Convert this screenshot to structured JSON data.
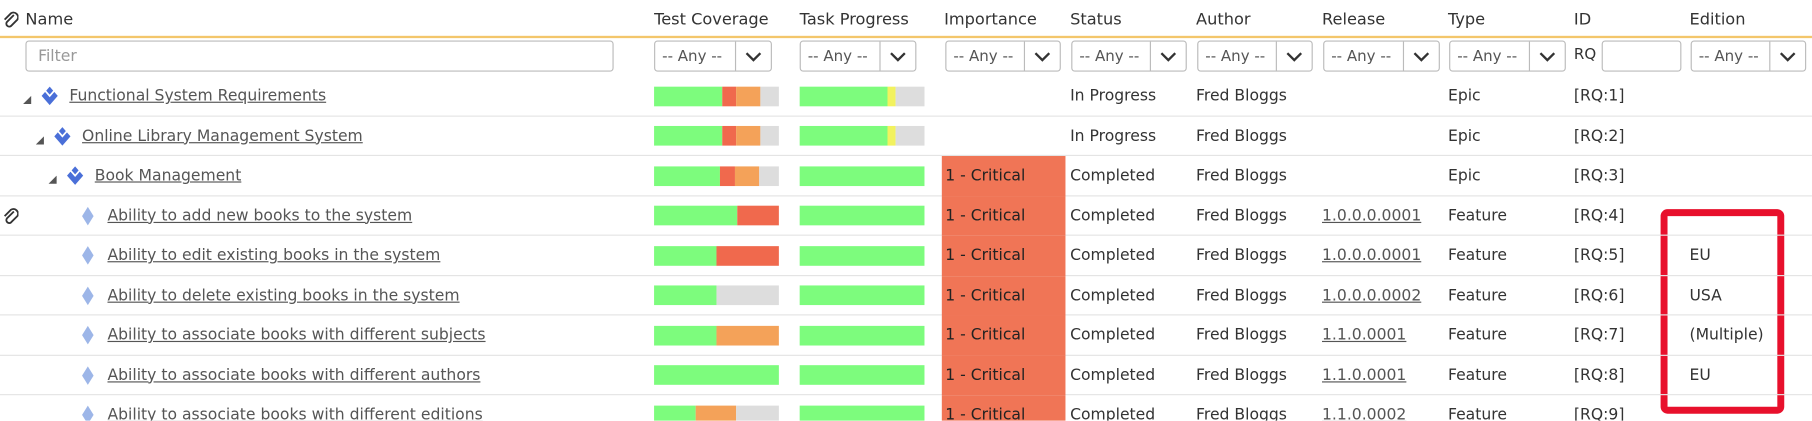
{
  "columns": [
    "Name",
    "Test Coverage",
    "Task Progress",
    "Importance",
    "Status",
    "Author",
    "Release",
    "Type",
    "ID",
    "Edition"
  ],
  "filters": {
    "name_placeholder": "Filter",
    "any": "-- Any --",
    "id_prefix": "RQ"
  },
  "bar_colors": {
    "coverage": [
      "#7dfc7d",
      "#f0694d",
      "#f4a259",
      "#dddddd"
    ],
    "progress": [
      "#7dfc7d",
      "#f2f25e",
      "#dddddd"
    ],
    "importance": "#f07556"
  },
  "rows": [
    {
      "name": "Functional System Requirements",
      "level": 0,
      "coverage": [
        55,
        11,
        19,
        15
      ],
      "progress": [
        70,
        7,
        23
      ],
      "status": "In Progress",
      "author": "Fred Bloggs",
      "type": "Epic",
      "id": "[RQ:1]"
    },
    {
      "name": "Online Library Management System",
      "level": 1,
      "coverage": [
        55,
        11,
        19,
        15
      ],
      "progress": [
        70,
        7,
        23
      ],
      "status": "In Progress",
      "author": "Fred Bloggs",
      "type": "Epic",
      "id": "[RQ:2]"
    },
    {
      "name": "Book Management",
      "level": 2,
      "coverage": [
        53,
        12,
        19,
        16
      ],
      "progress": [
        100,
        0,
        0
      ],
      "importance": "1 - Critical",
      "status": "Completed",
      "author": "Fred Bloggs",
      "type": "Epic",
      "id": "[RQ:3]"
    },
    {
      "name": "Ability to add new books to the system",
      "level": 3,
      "attachment": true,
      "coverage": [
        67,
        33,
        0,
        0
      ],
      "progress": [
        100,
        0,
        0
      ],
      "importance": "1 - Critical",
      "status": "Completed",
      "author": "Fred Bloggs",
      "release": "1.0.0.0.0001",
      "type": "Feature",
      "id": "[RQ:4]"
    },
    {
      "name": "Ability to edit existing books in the system",
      "level": 3,
      "coverage": [
        50,
        50,
        0,
        0
      ],
      "progress": [
        100,
        0,
        0
      ],
      "importance": "1 - Critical",
      "status": "Completed",
      "author": "Fred Bloggs",
      "release": "1.0.0.0.0001",
      "type": "Feature",
      "id": "[RQ:5]",
      "edition": "EU"
    },
    {
      "name": "Ability to delete existing books in the system",
      "level": 3,
      "coverage": [
        50,
        0,
        0,
        50
      ],
      "progress": [
        100,
        0,
        0
      ],
      "importance": "1 - Critical",
      "status": "Completed",
      "author": "Fred Bloggs",
      "release": "1.0.0.0.0002",
      "type": "Feature",
      "id": "[RQ:6]",
      "edition": "USA"
    },
    {
      "name": "Ability to associate books with different subjects",
      "level": 3,
      "coverage": [
        50,
        0,
        50,
        0
      ],
      "progress": [
        100,
        0,
        0
      ],
      "importance": "1 - Critical",
      "status": "Completed",
      "author": "Fred Bloggs",
      "release": "1.1.0.0001",
      "type": "Feature",
      "id": "[RQ:7]",
      "edition": "(Multiple)"
    },
    {
      "name": "Ability to associate books with different authors",
      "level": 3,
      "coverage": [
        100,
        0,
        0,
        0
      ],
      "progress": [
        100,
        0,
        0
      ],
      "importance": "1 - Critical",
      "status": "Completed",
      "author": "Fred Bloggs",
      "release": "1.1.0.0001",
      "type": "Feature",
      "id": "[RQ:8]",
      "edition": "EU"
    },
    {
      "name": "Ability to associate books with different editions",
      "level": 3,
      "coverage": [
        33,
        0,
        33,
        34
      ],
      "progress": [
        100,
        0,
        0
      ],
      "importance": "1 - Critical",
      "status": "Completed",
      "author": "Fred Bloggs",
      "release": "1.1.0.0002",
      "type": "Feature",
      "id": "[RQ:9]"
    }
  ]
}
